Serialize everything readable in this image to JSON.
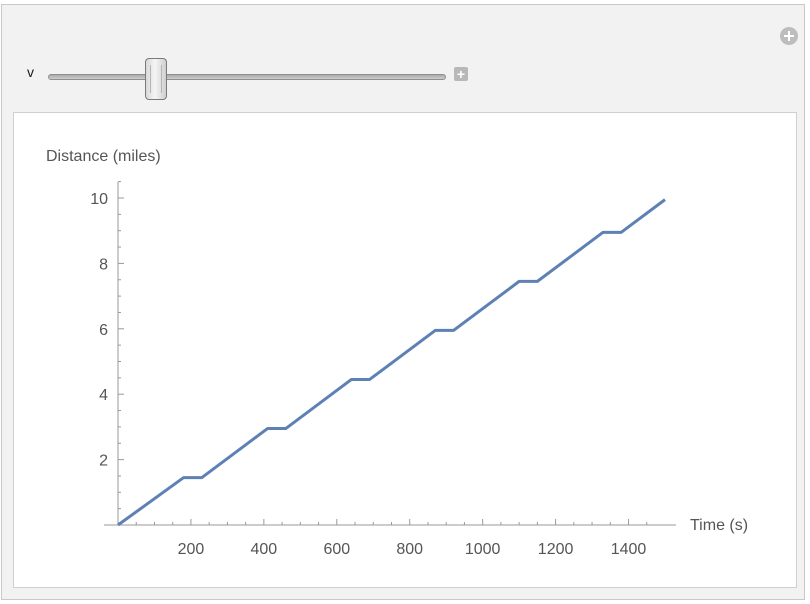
{
  "controls": {
    "variable_label": "v",
    "slider_value_fraction": 0.27
  },
  "chart_data": {
    "type": "line",
    "xlabel": "Time (s)",
    "ylabel": "Distance (miles)",
    "xlim": [
      0,
      1500
    ],
    "ylim": [
      0,
      10
    ],
    "x_ticks": [
      200,
      400,
      600,
      800,
      1000,
      1200,
      1400
    ],
    "y_ticks": [
      2,
      4,
      6,
      8,
      10
    ],
    "grid": false,
    "series": [
      {
        "color": "#5e81b5",
        "x": [
          0,
          180,
          230,
          410,
          460,
          640,
          690,
          870,
          920,
          1100,
          1150,
          1330,
          1380,
          1500
        ],
        "y": [
          0,
          1.45,
          1.45,
          2.95,
          2.95,
          4.45,
          4.45,
          5.95,
          5.95,
          7.45,
          7.45,
          8.95,
          8.95,
          9.95
        ]
      }
    ]
  }
}
